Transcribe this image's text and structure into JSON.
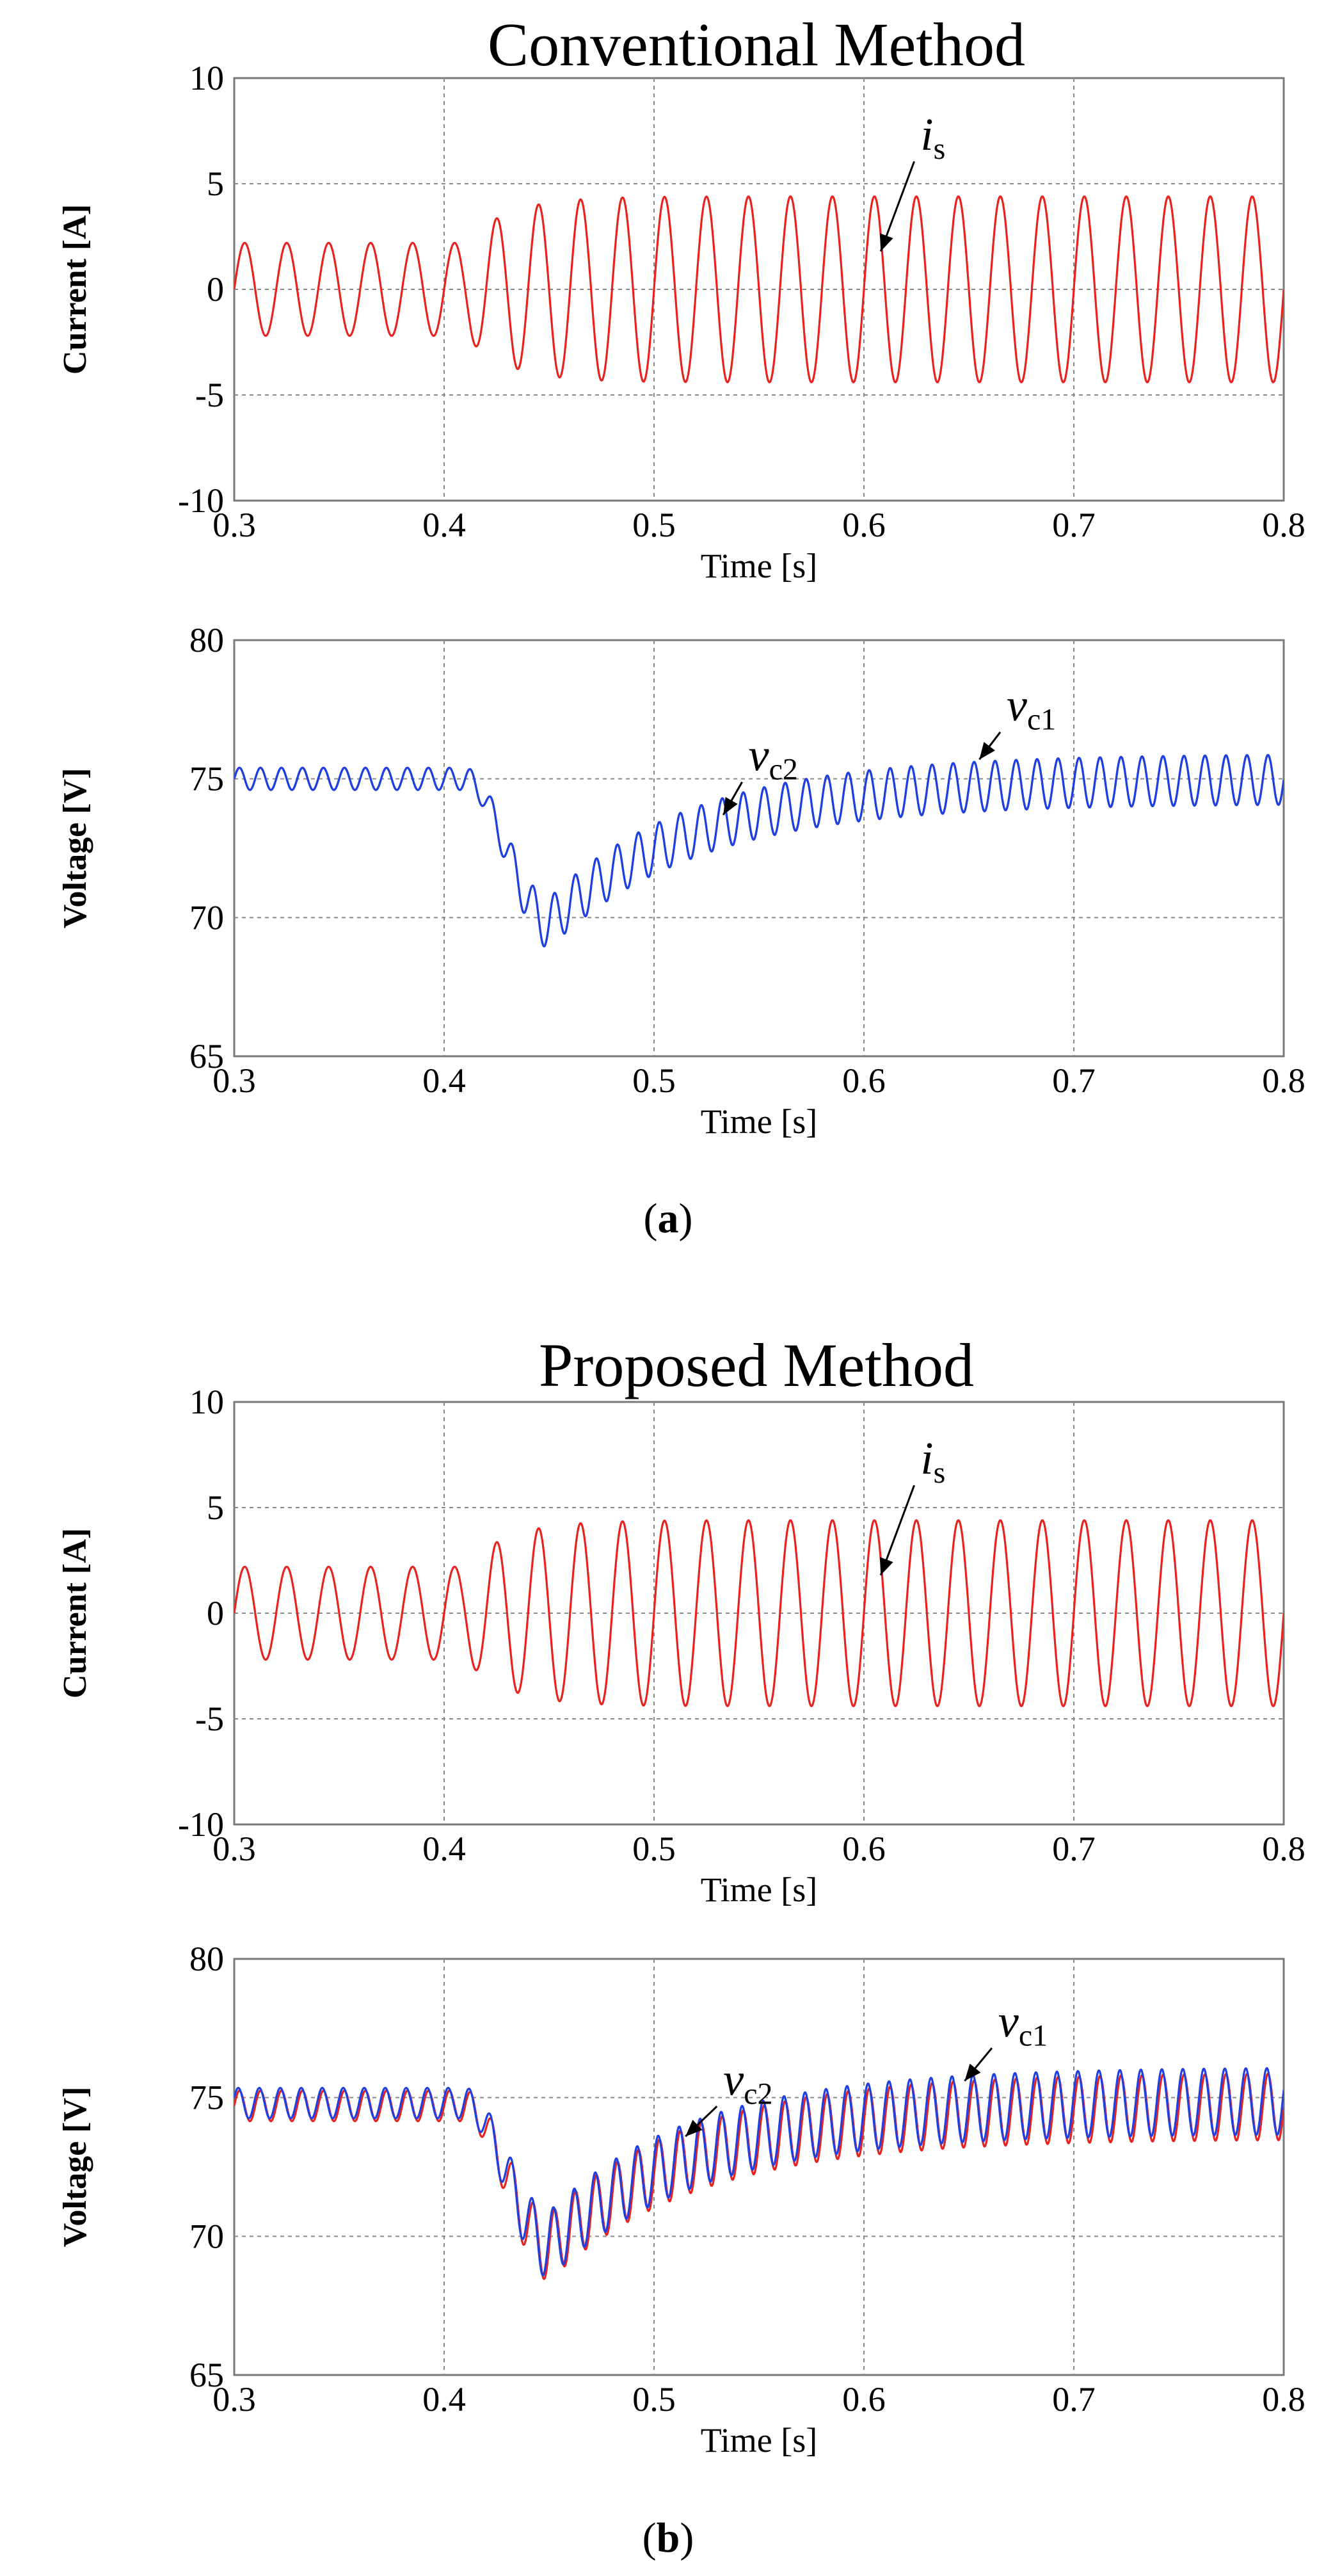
{
  "figure_captions": {
    "a": {
      "open": "(",
      "letter": "a",
      "close": ")"
    },
    "b": {
      "open": "(",
      "letter": "b",
      "close": ")"
    }
  },
  "colors": {
    "current": "#e8231f",
    "vc1": "#e8231f",
    "vc2": "#1f3fe0",
    "grid": "#8a8a8a",
    "axis": "#7a7a7a"
  },
  "chart_data": [
    {
      "id": "a-current",
      "type": "line",
      "title": "Conventional Method",
      "xlabel": "Time [s]",
      "ylabel": "Current [A]",
      "xlim": [
        0.3,
        0.8
      ],
      "ylim": [
        -10,
        10
      ],
      "xticks": [
        0.3,
        0.4,
        0.5,
        0.6,
        0.7,
        0.8
      ],
      "xtick_labels": [
        "0.3",
        "0.4",
        "0.5",
        "0.6",
        "0.7",
        "0.8"
      ],
      "yticks": [
        -10,
        -5,
        0,
        5,
        10
      ],
      "ytick_labels": [
        "-10",
        "-5",
        "0",
        "5",
        "10"
      ],
      "grid": true,
      "series": [
        {
          "name": "i_s",
          "label_main": "i",
          "label_sub": "s",
          "color": "#e8231f",
          "frequency_hz": 50,
          "t_start": 0.3,
          "t_end": 0.8,
          "amplitude_before": 2.2,
          "amplitude_after": 4.4,
          "step_time": 0.41,
          "rise_tau": 0.02,
          "vertical_offset": 0.0,
          "ripple": 0.0
        }
      ],
      "annotations": [
        {
          "series": "i_s",
          "text_x": 0.627,
          "text_y": 6.6,
          "point_x": 0.608,
          "point_y": 1.8
        }
      ]
    },
    {
      "id": "a-voltage",
      "type": "line",
      "title": "",
      "xlabel": "Time [s]",
      "ylabel": "Voltage [V]",
      "xlim": [
        0.3,
        0.8
      ],
      "ylim": [
        65,
        80
      ],
      "xticks": [
        0.3,
        0.4,
        0.5,
        0.6,
        0.7,
        0.8
      ],
      "xtick_labels": [
        "0.3",
        "0.4",
        "0.5",
        "0.6",
        "0.7",
        "0.8"
      ],
      "yticks": [
        65,
        70,
        75,
        80
      ],
      "ytick_labels": [
        "65",
        "70",
        "75",
        "80"
      ],
      "grid": true,
      "series": [
        {
          "name": "v_c1",
          "label_main": "v",
          "label_sub": "c1",
          "color": "#1f3fe0",
          "frequency_hz": 100,
          "t_start": 0.3,
          "t_end": 0.8,
          "steady_value": 75.0,
          "dip_start": 0.41,
          "dip_min_value": 69.8,
          "dip_min_time": 0.45,
          "final_value": 75.0,
          "recovery_tau": 0.07,
          "ripple_before": 0.4,
          "ripple_after": 0.9,
          "phase": 0.0
        },
        {
          "name": "v_c2",
          "label_main": "v",
          "label_sub": "c2",
          "color": "#1f3fe0",
          "frequency_hz": 100,
          "t_start": 0.3,
          "t_end": 0.8,
          "steady_value": 75.0,
          "dip_start": 0.41,
          "dip_min_value": 69.8,
          "dip_min_time": 0.45,
          "final_value": 75.0,
          "recovery_tau": 0.07,
          "ripple_before": 0.4,
          "ripple_after": 0.9,
          "phase": 0.0
        }
      ],
      "annotations": [
        {
          "series": "v_c1",
          "text_x": 0.668,
          "text_y": 77.1,
          "point_x": 0.655,
          "point_y": 75.7
        },
        {
          "series": "v_c2",
          "text_x": 0.545,
          "text_y": 75.3,
          "point_x": 0.533,
          "point_y": 73.7
        }
      ]
    },
    {
      "id": "b-current",
      "type": "line",
      "title": "Proposed Method",
      "xlabel": "Time [s]",
      "ylabel": "Current [A]",
      "xlim": [
        0.3,
        0.8
      ],
      "ylim": [
        -10,
        10
      ],
      "xticks": [
        0.3,
        0.4,
        0.5,
        0.6,
        0.7,
        0.8
      ],
      "xtick_labels": [
        "0.3",
        "0.4",
        "0.5",
        "0.6",
        "0.7",
        "0.8"
      ],
      "yticks": [
        -10,
        -5,
        0,
        5,
        10
      ],
      "ytick_labels": [
        "-10",
        "-5",
        "0",
        "5",
        "10"
      ],
      "grid": true,
      "series": [
        {
          "name": "i_s",
          "label_main": "i",
          "label_sub": "s",
          "color": "#e8231f",
          "frequency_hz": 50,
          "t_start": 0.3,
          "t_end": 0.8,
          "amplitude_before": 2.2,
          "amplitude_after": 4.4,
          "step_time": 0.41,
          "rise_tau": 0.02,
          "vertical_offset": 0.0,
          "ripple": 0.0
        }
      ],
      "annotations": [
        {
          "series": "i_s",
          "text_x": 0.627,
          "text_y": 6.6,
          "point_x": 0.608,
          "point_y": 1.8
        }
      ]
    },
    {
      "id": "b-voltage",
      "type": "line",
      "title": "",
      "xlabel": "Time [s]",
      "ylabel": "Voltage [V]",
      "xlim": [
        0.3,
        0.8
      ],
      "ylim": [
        65,
        80
      ],
      "xticks": [
        0.3,
        0.4,
        0.5,
        0.6,
        0.7,
        0.8
      ],
      "xtick_labels": [
        "0.3",
        "0.4",
        "0.5",
        "0.6",
        "0.7",
        "0.8"
      ],
      "yticks": [
        65,
        70,
        75,
        80
      ],
      "ytick_labels": [
        "65",
        "70",
        "75",
        "80"
      ],
      "grid": true,
      "series": [
        {
          "name": "v_c1",
          "label_main": "v",
          "label_sub": "c1",
          "color": "#e8231f",
          "frequency_hz": 100,
          "t_start": 0.3,
          "t_end": 0.8,
          "steady_value": 74.7,
          "dip_start": 0.41,
          "dip_min_value": 69.6,
          "dip_min_time": 0.45,
          "final_value": 74.7,
          "recovery_tau": 0.07,
          "ripple_before": 0.55,
          "ripple_after": 1.2,
          "phase": 0.0
        },
        {
          "name": "v_c2",
          "label_main": "v",
          "label_sub": "c2",
          "color": "#1f3fe0",
          "frequency_hz": 100,
          "t_start": 0.3,
          "t_end": 0.8,
          "steady_value": 74.8,
          "dip_start": 0.41,
          "dip_min_value": 69.7,
          "dip_min_time": 0.45,
          "final_value": 74.9,
          "recovery_tau": 0.07,
          "ripple_before": 0.55,
          "ripple_after": 1.2,
          "phase": 0.35
        }
      ],
      "annotations": [
        {
          "series": "v_c1",
          "text_x": 0.664,
          "text_y": 77.2,
          "point_x": 0.648,
          "point_y": 75.6
        },
        {
          "series": "v_c2",
          "text_x": 0.533,
          "text_y": 75.1,
          "point_x": 0.515,
          "point_y": 73.6
        }
      ]
    }
  ]
}
